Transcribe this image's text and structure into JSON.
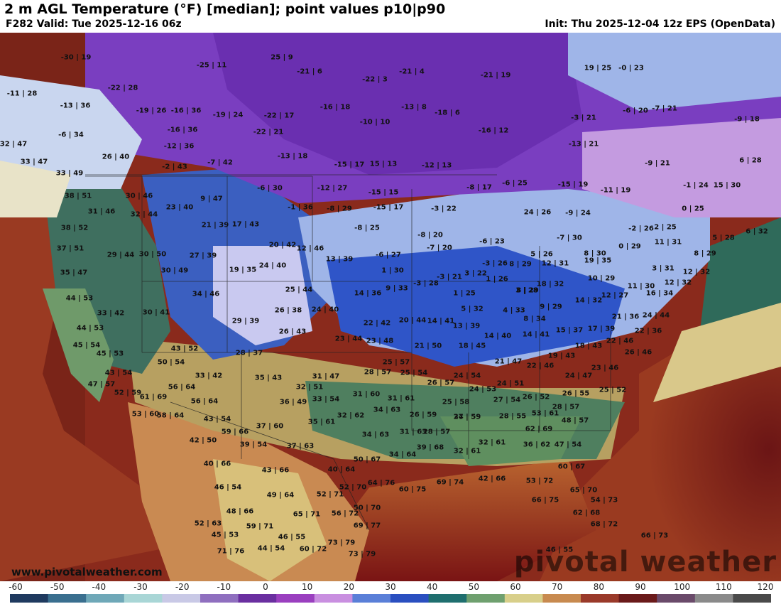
{
  "header": {
    "title": "2 m AGL Temperature (°F) [median]; point values p10|p90",
    "valid": "F282 Valid: Tue 2025-12-16 06z",
    "init": "Init: Thu 2025-12-04 12z EPS (OpenData)"
  },
  "footer": {
    "website": "www.pivotalweather.com",
    "brand": "pivotal weather"
  },
  "legend": {
    "ticks": [
      "-60",
      "-50",
      "-40",
      "-30",
      "-20",
      "-10",
      "0",
      "10",
      "20",
      "30",
      "40",
      "50",
      "60",
      "70",
      "80",
      "90",
      "100",
      "110",
      "120"
    ],
    "colors": [
      "#1f3a5f",
      "#3a6f8f",
      "#6fa8b8",
      "#a9d6d6",
      "#c9c9e6",
      "#8f6fbf",
      "#6a2fa0",
      "#9a3fbf",
      "#c98fe0",
      "#5a7fd8",
      "#2a4fc0",
      "#1f6f6f",
      "#6fa06f",
      "#d8cf8a",
      "#c88a4f",
      "#9a3a2a",
      "#6a1a1a",
      "#6a4a6a",
      "#8a8a8a",
      "#4a4a4a"
    ]
  },
  "map": {
    "point_values": [
      "-30 | 19",
      "-25 | 11",
      "25 | 9",
      "-21 | 6",
      "-21 | 4",
      "-21 | 19",
      "19 | 25",
      "-0 | 23",
      "-11 | 28",
      "-22 | 28",
      "-13 | 36",
      "-16 | 36",
      "-19 | 26",
      "-19 | 24",
      "-22 | 17",
      "-22 | 3",
      "-16 | 18",
      "-13 | 8",
      "-18 | 6",
      "-3 | 21",
      "-6 | 20",
      "-7 | 21",
      "-9 | 18",
      "-6 | 34",
      "-16 | 36",
      "-22 | 21",
      "-10 | 10",
      "-16 | 12",
      "32 | 47",
      "-12 | 36",
      "-13 | 18",
      "-13 | 21",
      "33 | 47",
      "26 | 40",
      "-2 | 43",
      "-7 | 42",
      "-15 | 17",
      "15 | 13",
      "-12 | 13",
      "-9 | 21",
      "6 | 28",
      "33 | 49",
      "-6 | 30",
      "-12 | 27",
      "-15 | 15",
      "-6 | 25",
      "-8 | 17",
      "-15 | 19",
      "-11 | 19",
      "-1 | 24",
      "15 | 30",
      "38 | 51",
      "30 | 46",
      "23 | 40",
      "9 | 47",
      "-1 | 36",
      "-8 | 29",
      "-15 | 17",
      "-3 | 22",
      "24 | 26",
      "-9 | 24",
      "0 | 25",
      "31 | 46",
      "32 | 44",
      "21 | 39",
      "17 | 43",
      "-8 | 25",
      "-8 | 20",
      "-6 | 23",
      "-7 | 30",
      "-2 | 26",
      "2 | 25",
      "5 | 28",
      "6 | 32",
      "38 | 52",
      "37 | 51",
      "29 | 44",
      "30 | 50",
      "20 | 42",
      "12 | 46",
      "-6 | 27",
      "-7 | 20",
      "5 | 26",
      "8 | 30",
      "0 | 29",
      "11 | 31",
      "8 | 29",
      "35 | 47",
      "27 | 39",
      "30 | 49",
      "19 | 35",
      "24 | 40",
      "13 | 39",
      "1 | 30",
      "-3 | 26",
      "8 | 29",
      "12 | 31",
      "19 | 35",
      "3 | 31",
      "12 | 32",
      "44 | 53",
      "34 | 46",
      "25 | 44",
      "14 | 36",
      "9 | 33",
      "-3 | 28",
      "-3 | 21",
      "3 | 22",
      "1 | 26",
      "8 | 29",
      "18 | 32",
      "10 | 29",
      "11 | 30",
      "12 | 32",
      "33 | 42",
      "30 | 41",
      "26 | 38",
      "24 | 40",
      "1 | 25",
      "3 | 28",
      "14 | 32",
      "12 | 27",
      "16 | 34",
      "44 | 53",
      "29 | 39",
      "22 | 42",
      "20 | 44",
      "14 | 41",
      "13 | 39",
      "5 | 32",
      "4 | 33",
      "9 | 29",
      "8 | 34",
      "21 | 36",
      "24 | 44",
      "45 | 54",
      "26 | 43",
      "23 | 44",
      "23 | 48",
      "14 | 40",
      "14 | 41",
      "15 | 37",
      "17 | 39",
      "22 | 36",
      "45 | 53",
      "43 | 52",
      "28 | 37",
      "21 | 50",
      "18 | 45",
      "18 | 43",
      "19 | 43",
      "22 | 46",
      "26 | 46",
      "50 | 54",
      "25 | 57",
      "21 | 47",
      "22 | 46",
      "23 | 46",
      "43 | 54",
      "33 | 42",
      "35 | 43",
      "31 | 47",
      "28 | 57",
      "25 | 54",
      "24 | 54",
      "24 | 47",
      "47 | 57",
      "56 | 64",
      "32 | 51",
      "26 | 57",
      "24 | 53",
      "24 | 51",
      "26 | 52",
      "26 | 55",
      "25 | 52",
      "52 | 59",
      "61 | 69",
      "31 | 60",
      "31 | 61",
      "25 | 58",
      "27 | 54",
      "28 | 57",
      "53 | 60",
      "58 | 64",
      "56 | 64",
      "36 | 49",
      "33 | 54",
      "34 | 63",
      "27 | 59",
      "28 | 55",
      "53 | 61",
      "43 | 54",
      "37 | 60",
      "35 | 61",
      "32 | 62",
      "26 | 59",
      "34 | 59",
      "48 | 57",
      "59 | 66",
      "42 | 50",
      "39 | 54",
      "37 | 63",
      "34 | 63",
      "31 | 63",
      "28 | 57",
      "62 | 69",
      "40 | 66",
      "34 | 64",
      "39 | 68",
      "32 | 61",
      "32 | 61",
      "36 | 62",
      "47 | 54",
      "43 | 66",
      "50 | 67",
      "40 | 64",
      "60 | 67",
      "46 | 54",
      "49 | 64",
      "52 | 71",
      "52 | 70",
      "64 | 76",
      "60 | 75",
      "69 | 74",
      "42 | 66",
      "53 | 72",
      "65 | 70",
      "48 | 66",
      "56 | 72",
      "50 | 70",
      "66 | 75",
      "54 | 73",
      "62 | 68",
      "52 | 63",
      "65 | 71",
      "59 | 71",
      "69 | 77",
      "68 | 72",
      "45 | 53",
      "46 | 55",
      "73 | 79",
      "66 | 73",
      "71 | 76",
      "44 | 54",
      "60 | 72",
      "73 | 79",
      "46 | 55"
    ]
  }
}
